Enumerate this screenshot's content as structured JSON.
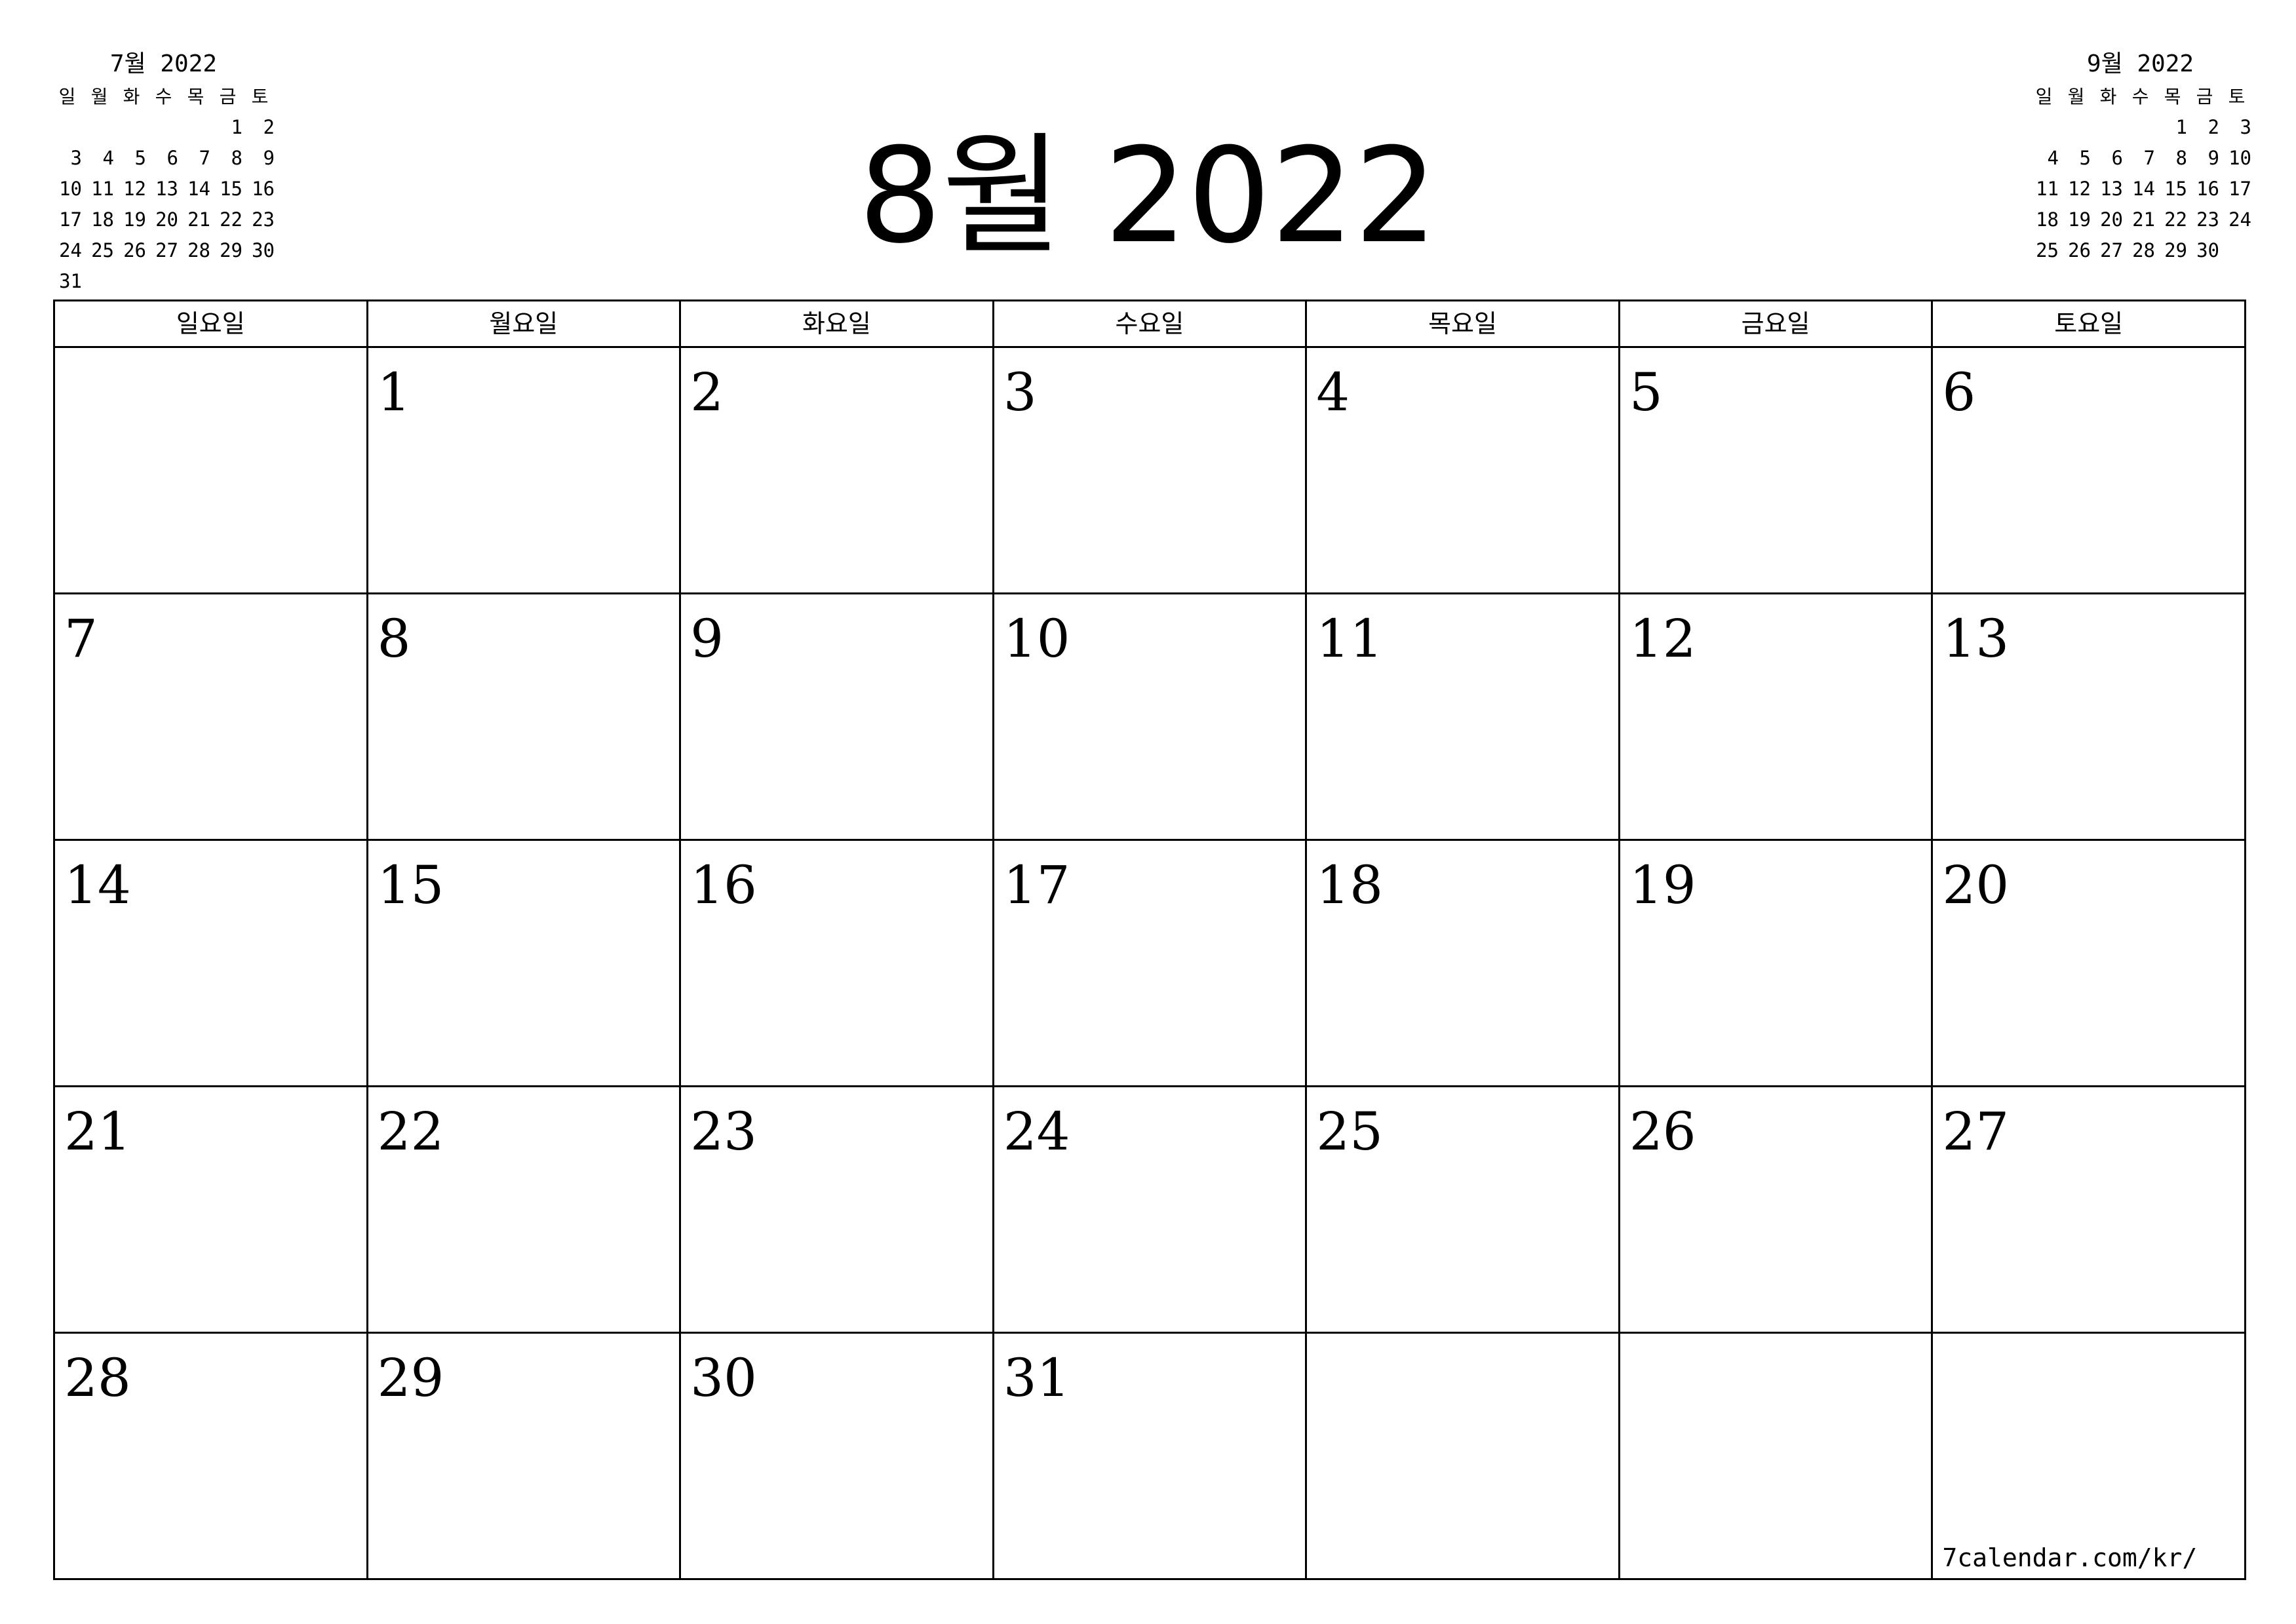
{
  "title": "8월 2022",
  "weekdays": [
    "일요일",
    "월요일",
    "화요일",
    "수요일",
    "목요일",
    "금요일",
    "토요일"
  ],
  "weeks": [
    [
      "",
      "1",
      "2",
      "3",
      "4",
      "5",
      "6"
    ],
    [
      "7",
      "8",
      "9",
      "10",
      "11",
      "12",
      "13"
    ],
    [
      "14",
      "15",
      "16",
      "17",
      "18",
      "19",
      "20"
    ],
    [
      "21",
      "22",
      "23",
      "24",
      "25",
      "26",
      "27"
    ],
    [
      "28",
      "29",
      "30",
      "31",
      "",
      "",
      ""
    ]
  ],
  "footer": "7calendar.com/kr/",
  "prev_month": {
    "title": "7월 2022",
    "weekdays": [
      "일",
      "월",
      "화",
      "수",
      "목",
      "금",
      "토"
    ],
    "weeks": [
      [
        "",
        "",
        "",
        "",
        "",
        "1",
        "2"
      ],
      [
        "3",
        "4",
        "5",
        "6",
        "7",
        "8",
        "9"
      ],
      [
        "10",
        "11",
        "12",
        "13",
        "14",
        "15",
        "16"
      ],
      [
        "17",
        "18",
        "19",
        "20",
        "21",
        "22",
        "23"
      ],
      [
        "24",
        "25",
        "26",
        "27",
        "28",
        "29",
        "30"
      ],
      [
        "31",
        "",
        "",
        "",
        "",
        "",
        ""
      ]
    ]
  },
  "next_month": {
    "title": "9월 2022",
    "weekdays": [
      "일",
      "월",
      "화",
      "수",
      "목",
      "금",
      "토"
    ],
    "weeks": [
      [
        "",
        "",
        "",
        "",
        "1",
        "2",
        "3"
      ],
      [
        "4",
        "5",
        "6",
        "7",
        "8",
        "9",
        "10"
      ],
      [
        "11",
        "12",
        "13",
        "14",
        "15",
        "16",
        "17"
      ],
      [
        "18",
        "19",
        "20",
        "21",
        "22",
        "23",
        "24"
      ],
      [
        "25",
        "26",
        "27",
        "28",
        "29",
        "30",
        ""
      ]
    ]
  }
}
